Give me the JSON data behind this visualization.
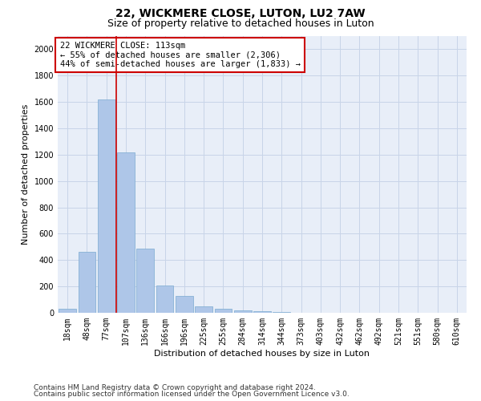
{
  "title1": "22, WICKMERE CLOSE, LUTON, LU2 7AW",
  "title2": "Size of property relative to detached houses in Luton",
  "xlabel": "Distribution of detached houses by size in Luton",
  "ylabel": "Number of detached properties",
  "categories": [
    "18sqm",
    "48sqm",
    "77sqm",
    "107sqm",
    "136sqm",
    "166sqm",
    "196sqm",
    "225sqm",
    "255sqm",
    "284sqm",
    "314sqm",
    "344sqm",
    "373sqm",
    "403sqm",
    "432sqm",
    "462sqm",
    "492sqm",
    "521sqm",
    "551sqm",
    "580sqm",
    "610sqm"
  ],
  "values": [
    30,
    460,
    1620,
    1215,
    490,
    210,
    130,
    50,
    30,
    20,
    10,
    5,
    3,
    2,
    1,
    1,
    0,
    0,
    0,
    0,
    0
  ],
  "bar_color": "#aec6e8",
  "bar_edge_color": "#7aaad0",
  "grid_color": "#c8d4e8",
  "background_color": "#e8eef8",
  "marker_line_color": "#cc0000",
  "annotation_line1": "22 WICKMERE CLOSE: 113sqm",
  "annotation_line2": "← 55% of detached houses are smaller (2,306)",
  "annotation_line3": "44% of semi-detached houses are larger (1,833) →",
  "annotation_box_color": "#ffffff",
  "annotation_border_color": "#cc0000",
  "ylim": [
    0,
    2100
  ],
  "yticks": [
    0,
    200,
    400,
    600,
    800,
    1000,
    1200,
    1400,
    1600,
    1800,
    2000
  ],
  "footnote1": "Contains HM Land Registry data © Crown copyright and database right 2024.",
  "footnote2": "Contains public sector information licensed under the Open Government Licence v3.0.",
  "title1_fontsize": 10,
  "title2_fontsize": 9,
  "axis_label_fontsize": 8,
  "tick_fontsize": 7,
  "annotation_fontsize": 7.5,
  "footnote_fontsize": 6.5
}
